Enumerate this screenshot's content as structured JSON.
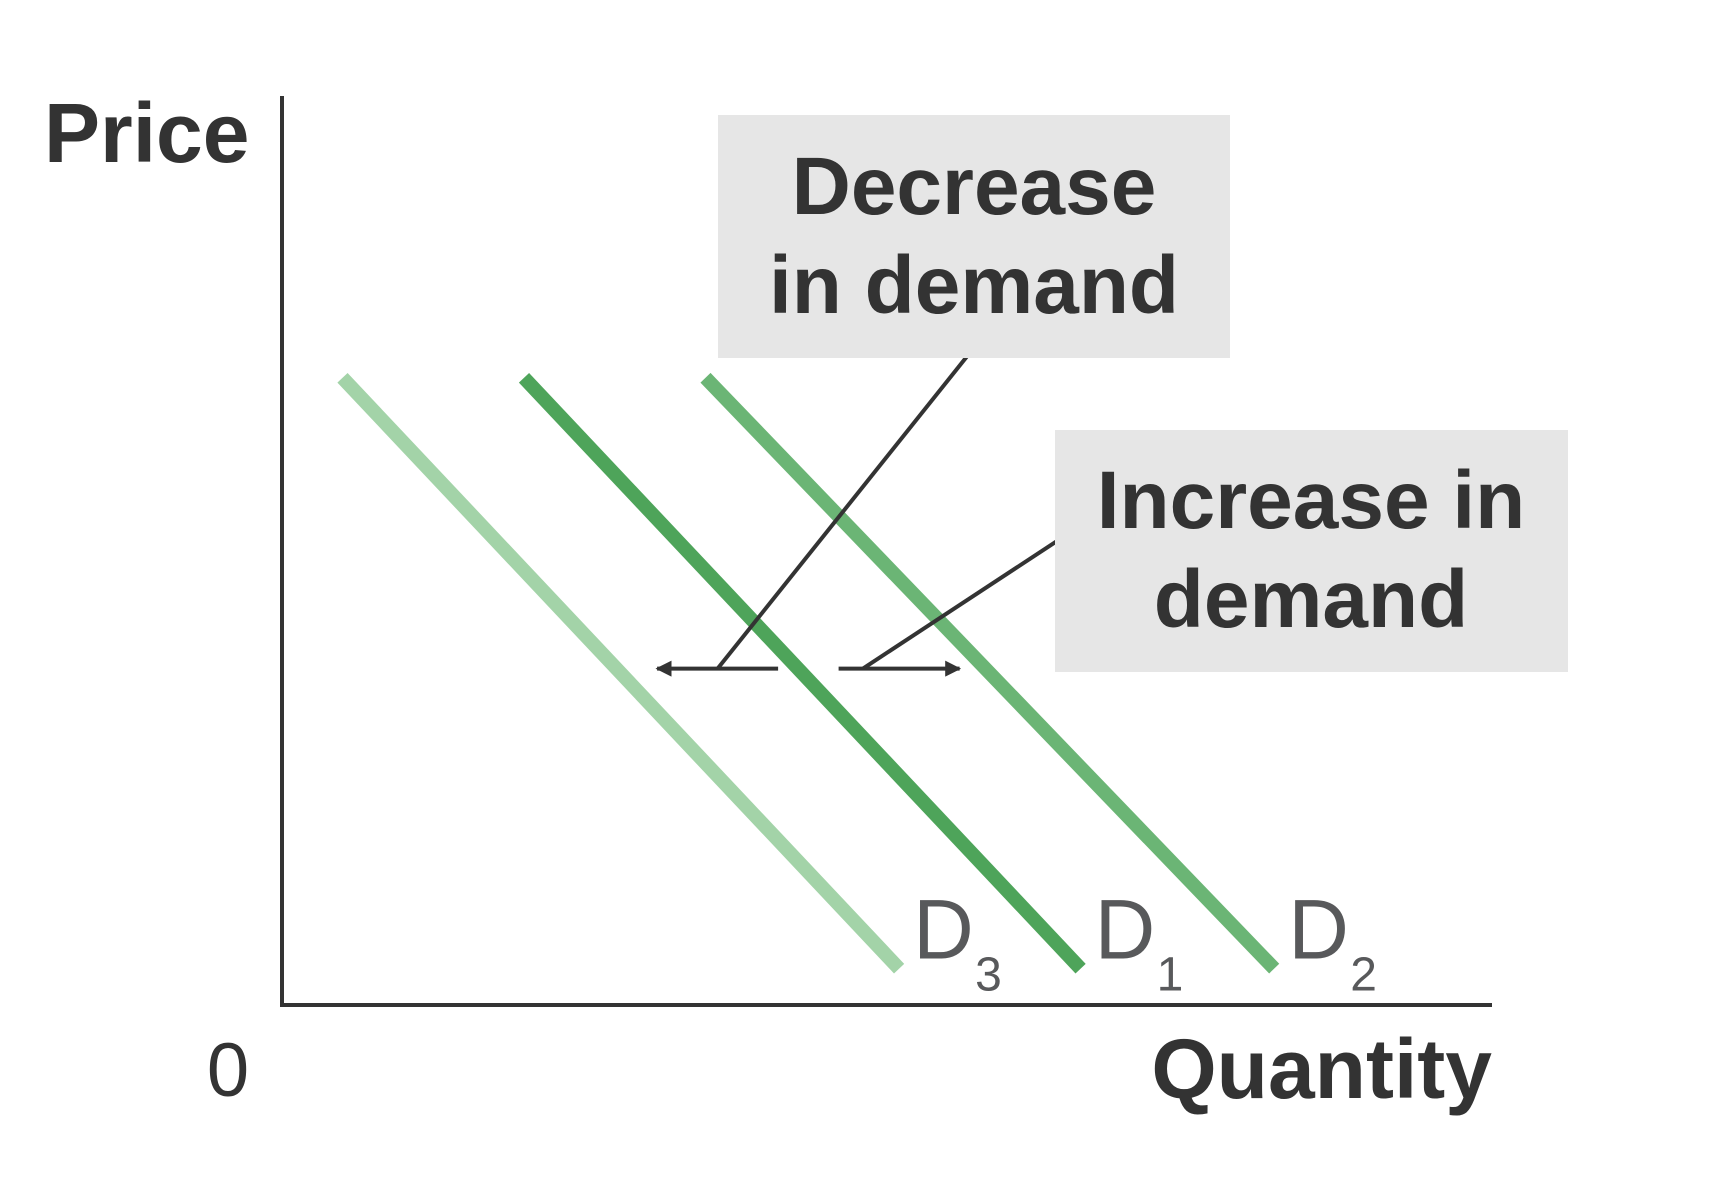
{
  "chart_data": {
    "type": "line",
    "title": "",
    "xlabel": "Quantity",
    "ylabel": "Price",
    "origin_label": "0",
    "xlim": [
      0,
      100
    ],
    "ylim": [
      0,
      100
    ],
    "grid": false,
    "series": [
      {
        "label": "D",
        "subscript": "3",
        "color": "#a3d3a8",
        "points": [
          [
            5,
            69
          ],
          [
            51,
            4
          ]
        ]
      },
      {
        "label": "D",
        "subscript": "1",
        "color": "#4ea45a",
        "points": [
          [
            20,
            69
          ],
          [
            66,
            4
          ]
        ]
      },
      {
        "label": "D",
        "subscript": "2",
        "color": "#6bb575",
        "points": [
          [
            35,
            69
          ],
          [
            82,
            4
          ]
        ]
      }
    ],
    "annotations": [
      {
        "id": "decrease",
        "lines": [
          "Decrease",
          "in demand"
        ],
        "arrow_direction": "left",
        "arrow": {
          "from": [
            41,
            37
          ],
          "to": [
            31,
            37
          ]
        },
        "leader_from": [
          57,
          72
        ],
        "leader_to": [
          36,
          37
        ]
      },
      {
        "id": "increase",
        "lines": [
          "Increase in",
          "demand"
        ],
        "arrow_direction": "right",
        "arrow": {
          "from": [
            46,
            37
          ],
          "to": [
            56,
            37
          ]
        },
        "leader_from": [
          64,
          51
        ],
        "leader_to": [
          48,
          37
        ]
      }
    ],
    "colors": {
      "axis": "#333333",
      "annotation_box": "#e6e6e6",
      "arrow": "#333333"
    }
  }
}
